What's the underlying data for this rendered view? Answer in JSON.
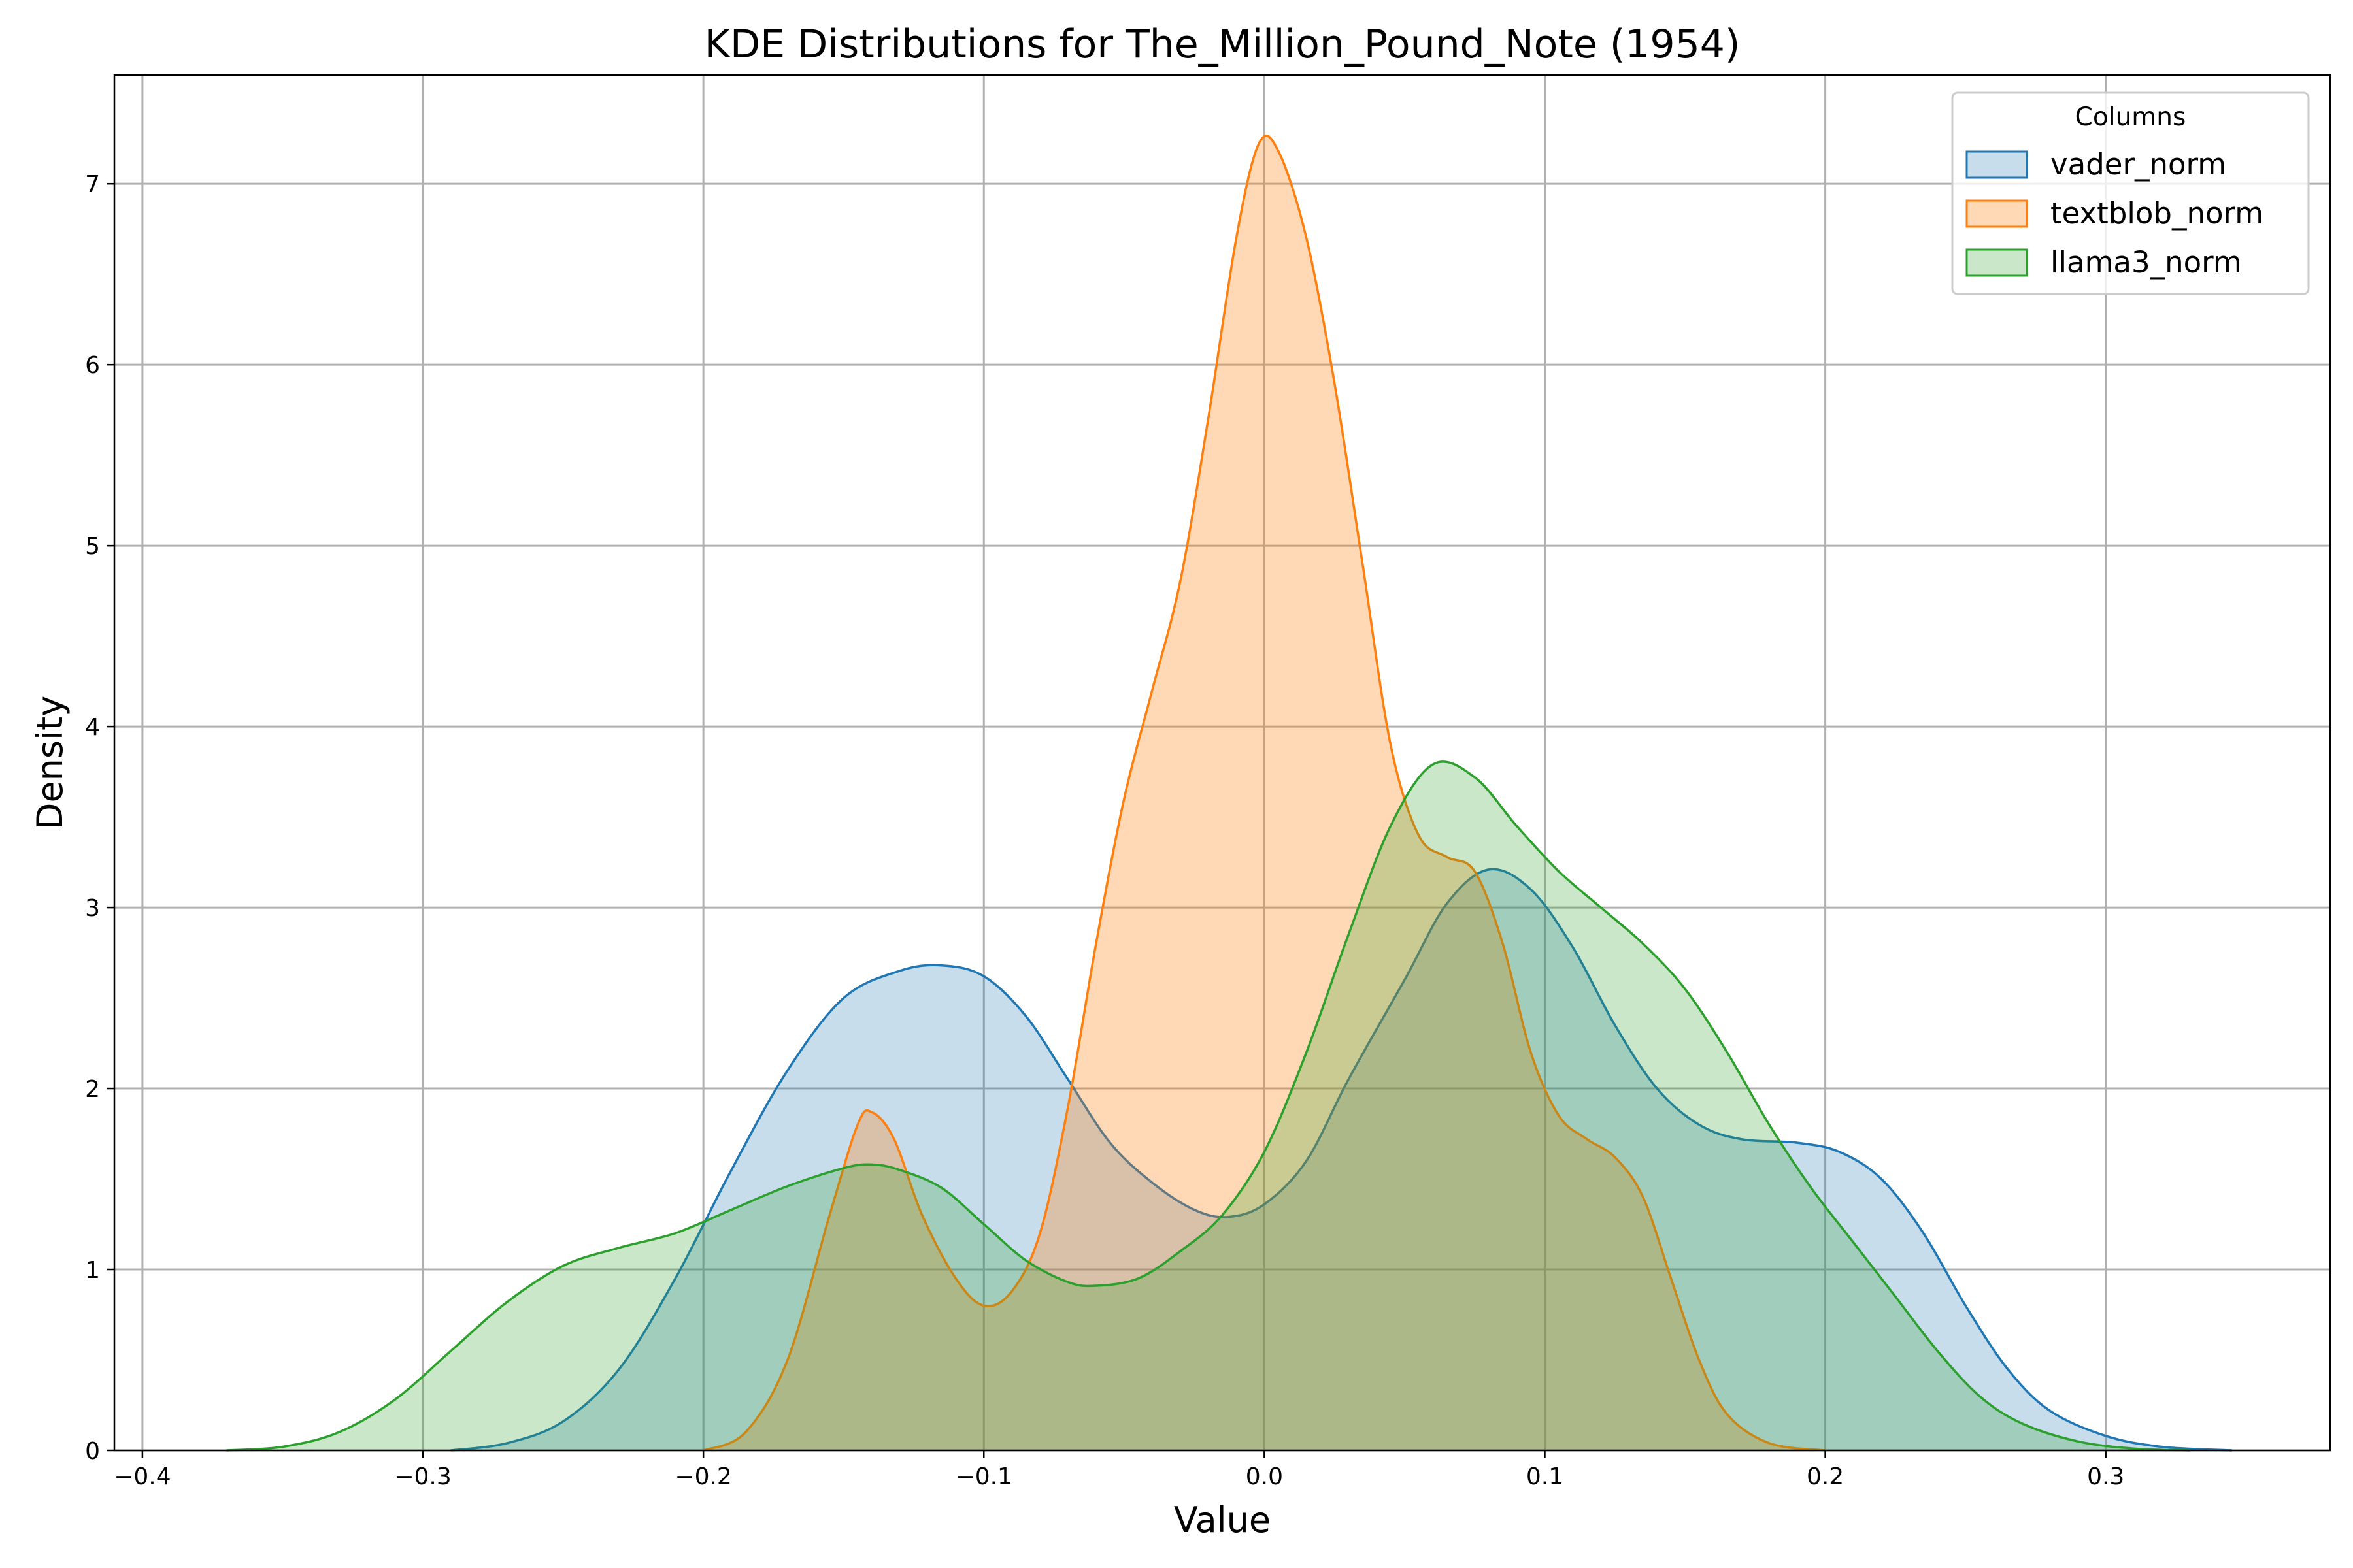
{
  "chart_data": {
    "type": "area",
    "title": "KDE Distributions for The_Million_Pound_Note (1954)",
    "xlabel": "Value",
    "ylabel": "Density",
    "xlim": [
      -0.41,
      0.38
    ],
    "ylim": [
      0,
      7.6
    ],
    "xticks": [
      -0.4,
      -0.3,
      -0.2,
      -0.1,
      0.0,
      0.1,
      0.2,
      0.3
    ],
    "xtick_labels": [
      "−0.4",
      "−0.3",
      "−0.2",
      "−0.1",
      "0.0",
      "0.1",
      "0.2",
      "0.3"
    ],
    "yticks": [
      0,
      1,
      2,
      3,
      4,
      5,
      6,
      7
    ],
    "ytick_labels": [
      "0",
      "1",
      "2",
      "3",
      "4",
      "5",
      "6",
      "7"
    ],
    "grid": true,
    "legend": {
      "title": "Columns",
      "position": "top-right"
    },
    "series": [
      {
        "name": "vader_norm",
        "color": "#1f77b4",
        "fill_opacity": 0.25,
        "points": [
          [
            -0.29,
            0
          ],
          [
            -0.27,
            0.04
          ],
          [
            -0.25,
            0.16
          ],
          [
            -0.23,
            0.45
          ],
          [
            -0.21,
            0.95
          ],
          [
            -0.19,
            1.55
          ],
          [
            -0.17,
            2.1
          ],
          [
            -0.15,
            2.5
          ],
          [
            -0.13,
            2.65
          ],
          [
            -0.115,
            2.68
          ],
          [
            -0.1,
            2.62
          ],
          [
            -0.085,
            2.4
          ],
          [
            -0.07,
            2.05
          ],
          [
            -0.055,
            1.7
          ],
          [
            -0.04,
            1.48
          ],
          [
            -0.025,
            1.33
          ],
          [
            -0.013,
            1.29
          ],
          [
            0.0,
            1.36
          ],
          [
            0.015,
            1.6
          ],
          [
            0.03,
            2.05
          ],
          [
            0.05,
            2.6
          ],
          [
            0.065,
            3.02
          ],
          [
            0.08,
            3.21
          ],
          [
            0.095,
            3.1
          ],
          [
            0.11,
            2.78
          ],
          [
            0.125,
            2.35
          ],
          [
            0.14,
            2.0
          ],
          [
            0.155,
            1.8
          ],
          [
            0.17,
            1.72
          ],
          [
            0.19,
            1.7
          ],
          [
            0.205,
            1.65
          ],
          [
            0.22,
            1.5
          ],
          [
            0.235,
            1.2
          ],
          [
            0.25,
            0.8
          ],
          [
            0.265,
            0.45
          ],
          [
            0.28,
            0.22
          ],
          [
            0.3,
            0.08
          ],
          [
            0.32,
            0.02
          ],
          [
            0.345,
            0
          ]
        ]
      },
      {
        "name": "textblob_norm",
        "color": "#ff7f0e",
        "fill_opacity": 0.3,
        "points": [
          [
            -0.2,
            0
          ],
          [
            -0.185,
            0.1
          ],
          [
            -0.17,
            0.5
          ],
          [
            -0.155,
            1.3
          ],
          [
            -0.145,
            1.8
          ],
          [
            -0.14,
            1.87
          ],
          [
            -0.132,
            1.72
          ],
          [
            -0.122,
            1.3
          ],
          [
            -0.11,
            0.95
          ],
          [
            -0.1,
            0.8
          ],
          [
            -0.09,
            0.88
          ],
          [
            -0.08,
            1.2
          ],
          [
            -0.07,
            1.9
          ],
          [
            -0.06,
            2.8
          ],
          [
            -0.05,
            3.6
          ],
          [
            -0.04,
            4.2
          ],
          [
            -0.03,
            4.8
          ],
          [
            -0.02,
            5.7
          ],
          [
            -0.01,
            6.7
          ],
          [
            -0.002,
            7.22
          ],
          [
            0.005,
            7.18
          ],
          [
            0.015,
            6.7
          ],
          [
            0.025,
            5.9
          ],
          [
            0.035,
            4.9
          ],
          [
            0.045,
            3.9
          ],
          [
            0.055,
            3.4
          ],
          [
            0.065,
            3.28
          ],
          [
            0.075,
            3.2
          ],
          [
            0.085,
            2.8
          ],
          [
            0.095,
            2.2
          ],
          [
            0.105,
            1.85
          ],
          [
            0.115,
            1.72
          ],
          [
            0.125,
            1.62
          ],
          [
            0.135,
            1.4
          ],
          [
            0.145,
            0.95
          ],
          [
            0.155,
            0.5
          ],
          [
            0.165,
            0.2
          ],
          [
            0.18,
            0.04
          ],
          [
            0.2,
            0
          ]
        ]
      },
      {
        "name": "llama3_norm",
        "color": "#2ca02c",
        "fill_opacity": 0.25,
        "points": [
          [
            -0.37,
            0
          ],
          [
            -0.35,
            0.02
          ],
          [
            -0.33,
            0.1
          ],
          [
            -0.31,
            0.28
          ],
          [
            -0.29,
            0.55
          ],
          [
            -0.27,
            0.82
          ],
          [
            -0.25,
            1.02
          ],
          [
            -0.23,
            1.12
          ],
          [
            -0.21,
            1.2
          ],
          [
            -0.19,
            1.33
          ],
          [
            -0.17,
            1.46
          ],
          [
            -0.15,
            1.56
          ],
          [
            -0.14,
            1.58
          ],
          [
            -0.13,
            1.55
          ],
          [
            -0.115,
            1.45
          ],
          [
            -0.1,
            1.25
          ],
          [
            -0.085,
            1.05
          ],
          [
            -0.07,
            0.93
          ],
          [
            -0.06,
            0.91
          ],
          [
            -0.045,
            0.95
          ],
          [
            -0.03,
            1.1
          ],
          [
            -0.015,
            1.3
          ],
          [
            0.0,
            1.65
          ],
          [
            0.015,
            2.2
          ],
          [
            0.03,
            2.85
          ],
          [
            0.045,
            3.45
          ],
          [
            0.06,
            3.79
          ],
          [
            0.075,
            3.72
          ],
          [
            0.09,
            3.45
          ],
          [
            0.105,
            3.2
          ],
          [
            0.12,
            3.0
          ],
          [
            0.135,
            2.8
          ],
          [
            0.15,
            2.55
          ],
          [
            0.165,
            2.2
          ],
          [
            0.18,
            1.8
          ],
          [
            0.195,
            1.45
          ],
          [
            0.21,
            1.15
          ],
          [
            0.225,
            0.85
          ],
          [
            0.24,
            0.55
          ],
          [
            0.255,
            0.3
          ],
          [
            0.27,
            0.15
          ],
          [
            0.29,
            0.05
          ],
          [
            0.31,
            0.01
          ],
          [
            0.33,
            0
          ]
        ]
      }
    ]
  }
}
